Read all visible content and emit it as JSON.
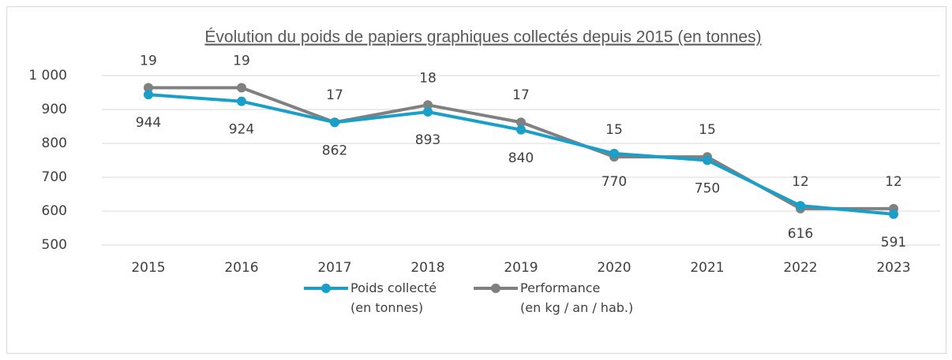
{
  "chart_data": {
    "type": "line",
    "title": "Évolution du poids de papiers graphiques collectés depuis 2015 (en tonnes)",
    "categories": [
      "2015",
      "2016",
      "2017",
      "2018",
      "2019",
      "2020",
      "2021",
      "2022",
      "2023"
    ],
    "series": [
      {
        "name": "Poids collecté\n(en tonnes)",
        "color": "#1a9fc8",
        "values": [
          944,
          924,
          862,
          893,
          840,
          770,
          750,
          616,
          591
        ]
      },
      {
        "name": "Performance\n(en kg / an / hab.)",
        "color": "#808080",
        "axis": "y2",
        "values": [
          19,
          19,
          17,
          18,
          17,
          15,
          15,
          12,
          12
        ]
      }
    ],
    "ylim": [
      500,
      1000
    ],
    "yticks": [
      500,
      600,
      700,
      800,
      900,
      {
        "value": 1000,
        "label": "1 000"
      }
    ],
    "y2lim": [
      9.9,
      19.7
    ],
    "grid": true,
    "legend": "bottom"
  }
}
